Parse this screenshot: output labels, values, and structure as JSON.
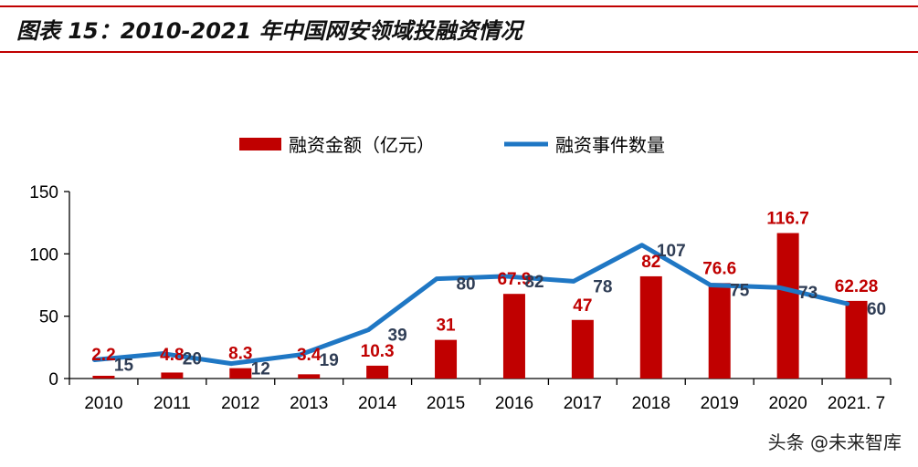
{
  "header": {
    "title": "图表 15：2010-2021 年中国网安领域投融资情况"
  },
  "watermark": "头条 @未来智库",
  "chart_data": {
    "type": "bar",
    "title": "",
    "categories": [
      "2010",
      "2011",
      "2012",
      "2013",
      "2014",
      "2015",
      "2016",
      "2017",
      "2018",
      "2019",
      "2020",
      "2021. 7"
    ],
    "series": [
      {
        "name": "融资金额（亿元）",
        "type": "bar",
        "color": "#c00000",
        "values": [
          2.2,
          4.8,
          8.3,
          3.4,
          10.3,
          31,
          67.9,
          47,
          82,
          76.6,
          116.7,
          62.28
        ],
        "labels": [
          "2.2",
          "4.8",
          "8.3",
          "3.4",
          "10.3",
          "31",
          "67.9",
          "47",
          "82",
          "76.6",
          "116.7",
          "62.28"
        ]
      },
      {
        "name": "融资事件数量",
        "type": "line",
        "color": "#1f77c4",
        "values": [
          15,
          20,
          12,
          19,
          39,
          80,
          82,
          78,
          107,
          75,
          73,
          60
        ],
        "labels": [
          "15",
          "20",
          "12",
          "19",
          "39",
          "80",
          "82",
          "78",
          "107",
          "75",
          "73",
          "60"
        ]
      }
    ],
    "yticks": [
      "0",
      "50",
      "100",
      "150"
    ],
    "ylim": [
      0,
      150
    ],
    "legend": "top-center",
    "grid": false
  }
}
